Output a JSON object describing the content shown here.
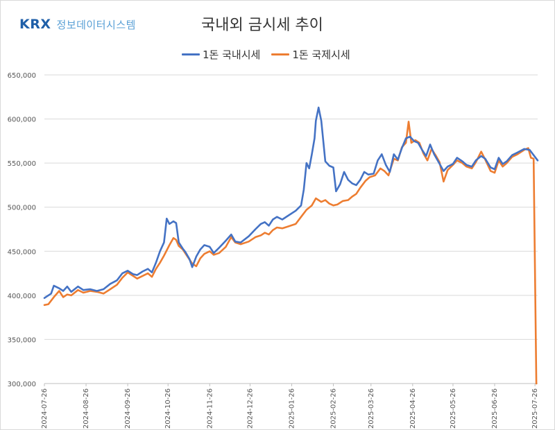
{
  "logo": {
    "mark": "KRX",
    "text": "정보데이터시스템"
  },
  "chart_data": {
    "type": "line",
    "title": "국내외 금시세 추이",
    "xlabel": "",
    "ylabel": "",
    "ylim": [
      300000,
      650000
    ],
    "yticks": [
      "300,000",
      "350,000",
      "400,000",
      "450,000",
      "500,000",
      "550,000",
      "600,000",
      "650,000"
    ],
    "ytick_values": [
      300000,
      350000,
      400000,
      450000,
      500000,
      550000,
      600000,
      650000
    ],
    "xticks": [
      "2024-07-26",
      "2024-08-26",
      "2024-09-26",
      "2024-10-26",
      "2024-11-26",
      "2024-12-26",
      "2025-01-26",
      "2025-02-26",
      "2025-03-26",
      "2025-04-26",
      "2025-05-26",
      "2025-06-26",
      "2025-07-26"
    ],
    "grid": true,
    "legend": "top-center",
    "x_range": [
      "2024-07-26",
      "2025-07-28"
    ],
    "series": [
      {
        "name": "1돈 국내시세",
        "color": "#4472c4",
        "points": [
          [
            "2024-07-26",
            397000
          ],
          [
            "2024-07-31",
            402000
          ],
          [
            "2024-08-02",
            411000
          ],
          [
            "2024-08-06",
            408000
          ],
          [
            "2024-08-09",
            405000
          ],
          [
            "2024-08-12",
            410000
          ],
          [
            "2024-08-15",
            404000
          ],
          [
            "2024-08-20",
            410000
          ],
          [
            "2024-08-24",
            406000
          ],
          [
            "2024-08-29",
            407000
          ],
          [
            "2024-09-03",
            405000
          ],
          [
            "2024-09-08",
            407000
          ],
          [
            "2024-09-13",
            413000
          ],
          [
            "2024-09-18",
            417000
          ],
          [
            "2024-09-22",
            425000
          ],
          [
            "2024-09-26",
            428000
          ],
          [
            "2024-09-30",
            424000
          ],
          [
            "2024-10-03",
            423000
          ],
          [
            "2024-10-07",
            427000
          ],
          [
            "2024-10-11",
            430000
          ],
          [
            "2024-10-14",
            426000
          ],
          [
            "2024-10-17",
            437000
          ],
          [
            "2024-10-20",
            450000
          ],
          [
            "2024-10-23",
            460000
          ],
          [
            "2024-10-25",
            487000
          ],
          [
            "2024-10-27",
            481000
          ],
          [
            "2024-10-30",
            484000
          ],
          [
            "2024-11-01",
            482000
          ],
          [
            "2024-11-03",
            460000
          ],
          [
            "2024-11-06",
            453000
          ],
          [
            "2024-11-08",
            449000
          ],
          [
            "2024-11-11",
            441000
          ],
          [
            "2024-11-13",
            432000
          ],
          [
            "2024-11-16",
            444000
          ],
          [
            "2024-11-19",
            452000
          ],
          [
            "2024-11-22",
            457000
          ],
          [
            "2024-11-26",
            455000
          ],
          [
            "2024-11-29",
            448000
          ],
          [
            "2024-12-03",
            454000
          ],
          [
            "2024-12-08",
            462000
          ],
          [
            "2024-12-12",
            469000
          ],
          [
            "2024-12-15",
            461000
          ],
          [
            "2024-12-19",
            460000
          ],
          [
            "2024-12-25",
            467000
          ],
          [
            "2024-12-30",
            475000
          ],
          [
            "2025-01-03",
            481000
          ],
          [
            "2025-01-06",
            483000
          ],
          [
            "2025-01-09",
            479000
          ],
          [
            "2025-01-12",
            486000
          ],
          [
            "2025-01-15",
            489000
          ],
          [
            "2025-01-19",
            486000
          ],
          [
            "2025-01-23",
            490000
          ],
          [
            "2025-01-29",
            496000
          ],
          [
            "2025-02-02",
            502000
          ],
          [
            "2025-02-04",
            520000
          ],
          [
            "2025-02-06",
            550000
          ],
          [
            "2025-02-08",
            544000
          ],
          [
            "2025-02-10",
            560000
          ],
          [
            "2025-02-12",
            578000
          ],
          [
            "2025-02-13",
            598000
          ],
          [
            "2025-02-15",
            613000
          ],
          [
            "2025-02-17",
            598000
          ],
          [
            "2025-02-20",
            552000
          ],
          [
            "2025-02-23",
            547000
          ],
          [
            "2025-02-26",
            545000
          ],
          [
            "2025-02-28",
            518000
          ],
          [
            "2025-03-03",
            526000
          ],
          [
            "2025-03-06",
            540000
          ],
          [
            "2025-03-09",
            531000
          ],
          [
            "2025-03-12",
            527000
          ],
          [
            "2025-03-15",
            525000
          ],
          [
            "2025-03-18",
            531000
          ],
          [
            "2025-03-21",
            540000
          ],
          [
            "2025-03-24",
            537000
          ],
          [
            "2025-03-28",
            538000
          ],
          [
            "2025-03-31",
            553000
          ],
          [
            "2025-04-03",
            560000
          ],
          [
            "2025-04-06",
            548000
          ],
          [
            "2025-04-09",
            540000
          ],
          [
            "2025-04-12",
            560000
          ],
          [
            "2025-04-15",
            554000
          ],
          [
            "2025-04-18",
            567000
          ],
          [
            "2025-04-21",
            578000
          ],
          [
            "2025-04-24",
            580000
          ],
          [
            "2025-04-27",
            575000
          ],
          [
            "2025-04-30",
            573000
          ],
          [
            "2025-05-03",
            565000
          ],
          [
            "2025-05-06",
            558000
          ],
          [
            "2025-05-09",
            571000
          ],
          [
            "2025-05-12",
            560000
          ],
          [
            "2025-05-15",
            552000
          ],
          [
            "2025-05-19",
            541000
          ],
          [
            "2025-05-22",
            546000
          ],
          [
            "2025-05-26",
            549000
          ],
          [
            "2025-05-29",
            556000
          ],
          [
            "2025-06-02",
            552000
          ],
          [
            "2025-06-05",
            548000
          ],
          [
            "2025-06-09",
            546000
          ],
          [
            "2025-06-12",
            553000
          ],
          [
            "2025-06-16",
            558000
          ],
          [
            "2025-06-19",
            555000
          ],
          [
            "2025-06-23",
            545000
          ],
          [
            "2025-06-26",
            543000
          ],
          [
            "2025-06-29",
            556000
          ],
          [
            "2025-07-02",
            549000
          ],
          [
            "2025-07-05",
            552000
          ],
          [
            "2025-07-09",
            559000
          ],
          [
            "2025-07-13",
            562000
          ],
          [
            "2025-07-18",
            566000
          ],
          [
            "2025-07-22",
            565000
          ],
          [
            "2025-07-28",
            553000
          ]
        ]
      },
      {
        "name": "1돈 국제시세",
        "color": "#ed7d31",
        "points": [
          [
            "2024-07-26",
            389000
          ],
          [
            "2024-07-29",
            390000
          ],
          [
            "2024-08-02",
            398000
          ],
          [
            "2024-08-06",
            405000
          ],
          [
            "2024-08-09",
            398000
          ],
          [
            "2024-08-12",
            401000
          ],
          [
            "2024-08-15",
            400000
          ],
          [
            "2024-08-20",
            406000
          ],
          [
            "2024-08-24",
            403000
          ],
          [
            "2024-08-29",
            405000
          ],
          [
            "2024-09-03",
            404000
          ],
          [
            "2024-09-08",
            402000
          ],
          [
            "2024-09-13",
            407000
          ],
          [
            "2024-09-18",
            412000
          ],
          [
            "2024-09-22",
            420000
          ],
          [
            "2024-09-26",
            426000
          ],
          [
            "2024-09-30",
            422000
          ],
          [
            "2024-10-03",
            419000
          ],
          [
            "2024-10-07",
            422000
          ],
          [
            "2024-10-11",
            425000
          ],
          [
            "2024-10-14",
            421000
          ],
          [
            "2024-10-17",
            430000
          ],
          [
            "2024-10-20",
            437000
          ],
          [
            "2024-10-23",
            445000
          ],
          [
            "2024-10-27",
            457000
          ],
          [
            "2024-10-30",
            465000
          ],
          [
            "2024-11-01",
            463000
          ],
          [
            "2024-11-03",
            456000
          ],
          [
            "2024-11-06",
            452000
          ],
          [
            "2024-11-09",
            445000
          ],
          [
            "2024-11-13",
            436000
          ],
          [
            "2024-11-16",
            433000
          ],
          [
            "2024-11-19",
            442000
          ],
          [
            "2024-11-22",
            447000
          ],
          [
            "2024-11-26",
            450000
          ],
          [
            "2024-11-29",
            446000
          ],
          [
            "2024-12-03",
            448000
          ],
          [
            "2024-12-08",
            455000
          ],
          [
            "2024-12-12",
            466000
          ],
          [
            "2024-12-15",
            460000
          ],
          [
            "2024-12-19",
            458000
          ],
          [
            "2024-12-25",
            461000
          ],
          [
            "2024-12-30",
            466000
          ],
          [
            "2025-01-03",
            468000
          ],
          [
            "2025-01-06",
            471000
          ],
          [
            "2025-01-09",
            469000
          ],
          [
            "2025-01-12",
            474000
          ],
          [
            "2025-01-15",
            477000
          ],
          [
            "2025-01-19",
            476000
          ],
          [
            "2025-01-23",
            478000
          ],
          [
            "2025-01-29",
            481000
          ],
          [
            "2025-02-02",
            489000
          ],
          [
            "2025-02-06",
            497000
          ],
          [
            "2025-02-10",
            502000
          ],
          [
            "2025-02-13",
            510000
          ],
          [
            "2025-02-17",
            506000
          ],
          [
            "2025-02-20",
            508000
          ],
          [
            "2025-02-23",
            504000
          ],
          [
            "2025-02-26",
            502000
          ],
          [
            "2025-03-01",
            503000
          ],
          [
            "2025-03-05",
            507000
          ],
          [
            "2025-03-09",
            508000
          ],
          [
            "2025-03-12",
            512000
          ],
          [
            "2025-03-15",
            515000
          ],
          [
            "2025-03-18",
            522000
          ],
          [
            "2025-03-22",
            530000
          ],
          [
            "2025-03-25",
            534000
          ],
          [
            "2025-03-29",
            536000
          ],
          [
            "2025-04-02",
            544000
          ],
          [
            "2025-04-05",
            541000
          ],
          [
            "2025-04-08",
            536000
          ],
          [
            "2025-04-12",
            555000
          ],
          [
            "2025-04-15",
            553000
          ],
          [
            "2025-04-18",
            568000
          ],
          [
            "2025-04-21",
            573000
          ],
          [
            "2025-04-23",
            597000
          ],
          [
            "2025-04-25",
            573000
          ],
          [
            "2025-04-28",
            576000
          ],
          [
            "2025-05-01",
            573000
          ],
          [
            "2025-05-04",
            561000
          ],
          [
            "2025-05-07",
            553000
          ],
          [
            "2025-05-10",
            566000
          ],
          [
            "2025-05-13",
            559000
          ],
          [
            "2025-05-16",
            551000
          ],
          [
            "2025-05-19",
            529000
          ],
          [
            "2025-05-22",
            542000
          ],
          [
            "2025-05-26",
            548000
          ],
          [
            "2025-05-29",
            553000
          ],
          [
            "2025-06-02",
            550000
          ],
          [
            "2025-06-05",
            546000
          ],
          [
            "2025-06-09",
            544000
          ],
          [
            "2025-06-12",
            551000
          ],
          [
            "2025-06-16",
            563000
          ],
          [
            "2025-06-19",
            554000
          ],
          [
            "2025-06-23",
            541000
          ],
          [
            "2025-06-26",
            539000
          ],
          [
            "2025-06-29",
            553000
          ],
          [
            "2025-07-02",
            546000
          ],
          [
            "2025-07-05",
            550000
          ],
          [
            "2025-07-09",
            557000
          ],
          [
            "2025-07-13",
            560000
          ],
          [
            "2025-07-18",
            565000
          ],
          [
            "2025-07-21",
            567000
          ],
          [
            "2025-07-23",
            556000
          ],
          [
            "2025-07-25",
            555000
          ],
          [
            "2025-07-27",
            300000
          ]
        ]
      }
    ]
  }
}
